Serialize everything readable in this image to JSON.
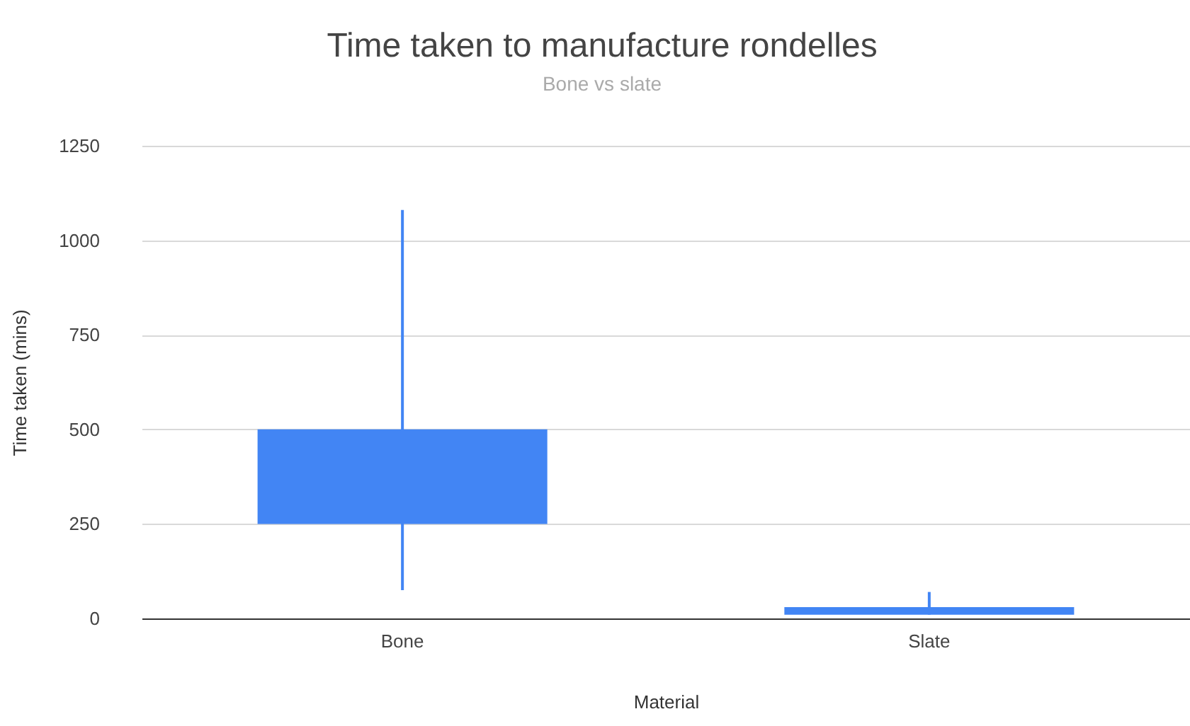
{
  "chart_data": {
    "type": "candlestick",
    "title": "Time taken to manufacture rondelles",
    "subtitle": "Bone vs slate",
    "xlabel": "Material",
    "ylabel": "Time taken (mins)",
    "categories": [
      "Bone",
      "Slate"
    ],
    "ohlc": [
      [
        250,
        1080,
        75,
        500
      ],
      [
        10,
        70,
        10,
        30
      ]
    ],
    "color": "#4285f4",
    "ylim": [
      0,
      1250
    ],
    "yticks": [
      0,
      250,
      500,
      750,
      1000,
      1250
    ],
    "grid": "y"
  }
}
